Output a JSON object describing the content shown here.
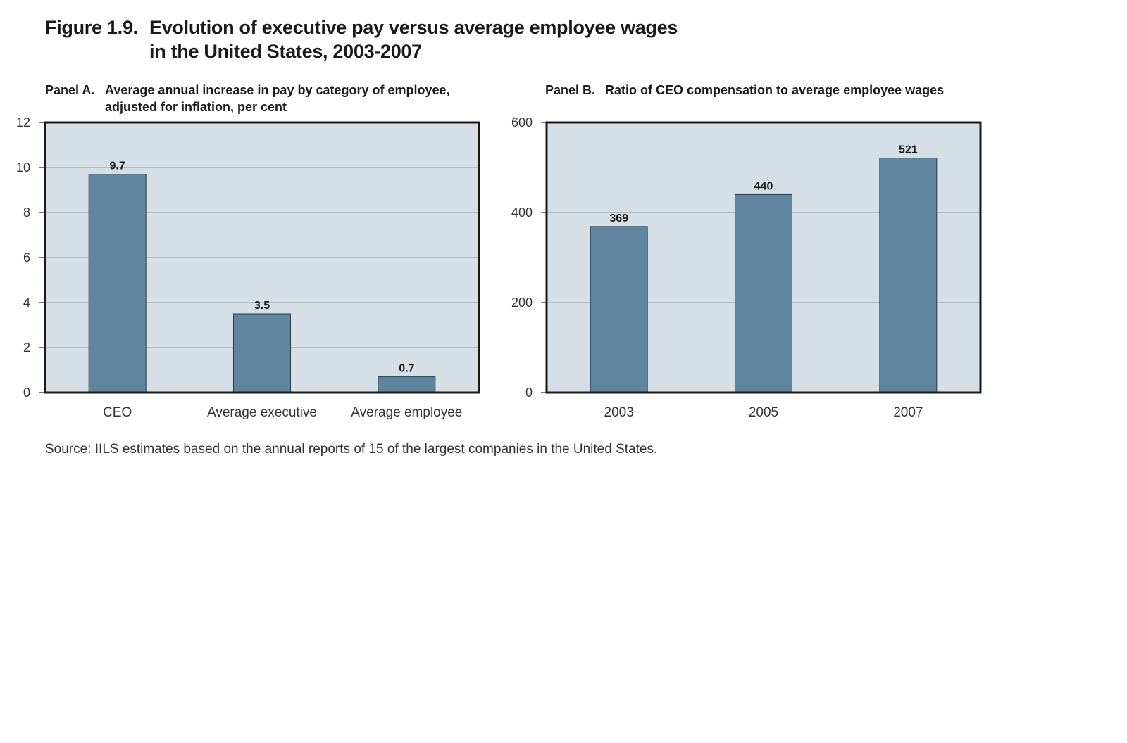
{
  "figure": {
    "number": "Figure 1.9.",
    "title_line1": "Evolution of executive pay versus average employee wages",
    "title_line2": "in the United States, 2003-2007"
  },
  "panels": {
    "a": {
      "lead": "Panel A.",
      "title_line1": "Average annual increase in pay by category of employee,",
      "title_line2": "adjusted for inflation, per cent"
    },
    "b": {
      "lead": "Panel B.",
      "title_line1": "Ratio of CEO compensation to average employee wages"
    }
  },
  "source": "Source: IILS estimates based on the annual reports of 15 of the largest companies in the United States.",
  "colors": {
    "plot_background": "#d6dfe6",
    "bar_fill": "#5f859e",
    "gridline": "#8f9aa3",
    "frame": "#1a1a1a"
  },
  "chart_data": [
    {
      "type": "bar",
      "panel": "Panel A",
      "categories": [
        "CEO",
        "Average executive",
        "Average employee"
      ],
      "values": [
        9.7,
        3.5,
        0.7
      ],
      "data_labels": [
        "9.7",
        "3.5",
        "0.7"
      ],
      "ylim": [
        0,
        12
      ],
      "yticks": [
        0,
        2,
        4,
        6,
        8,
        10,
        12
      ],
      "grid": true,
      "legend": "none"
    },
    {
      "type": "bar",
      "panel": "Panel B",
      "categories": [
        "2003",
        "2005",
        "2007"
      ],
      "values": [
        369,
        440,
        521
      ],
      "data_labels": [
        "369",
        "440",
        "521"
      ],
      "ylim": [
        0,
        600
      ],
      "yticks": [
        0,
        200,
        400,
        600
      ],
      "grid": true,
      "legend": "none"
    }
  ]
}
